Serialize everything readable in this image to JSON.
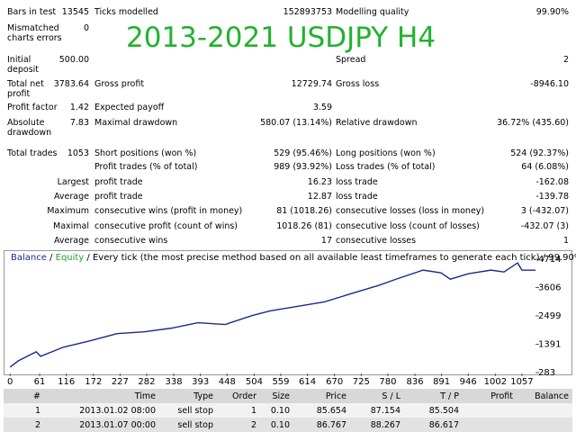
{
  "overlay_title": "2013-2021 USDJPY H4",
  "report": {
    "rows": [
      {
        "label1": "Bars in test",
        "value1": "13545",
        "label2": "Ticks modelled",
        "value2": "152893753",
        "label3": "Modelling quality",
        "value3": "99.90%"
      },
      {
        "label1": "Mismatched charts errors",
        "value1": "0"
      },
      {
        "label1": "Initial deposit",
        "value1": "500.00",
        "label3": "Spread",
        "value3": "2"
      },
      {
        "label1": "Total net profit",
        "value1": "3783.64",
        "label2": "Gross profit",
        "value2": "12729.74",
        "label3": "Gross loss",
        "value3": "-8946.10"
      },
      {
        "label1": "Profit factor",
        "value1": "1.42",
        "label2": "Expected payoff",
        "value2": "3.59"
      },
      {
        "label1": "Absolute drawdown",
        "value1": "7.83",
        "label2": "Maximal drawdown",
        "value2": "580.07 (13.14%)",
        "label3": "Relative drawdown",
        "value3": "36.72% (435.60)"
      },
      {
        "label1": "Total trades",
        "value1": "1053",
        "label2": "Short positions (won %)",
        "value2": "529 (95.46%)",
        "label3": "Long positions (won %)",
        "value3": "524 (92.37%)"
      },
      {
        "label2": "Profit trades (% of total)",
        "value2": "989 (93.92%)",
        "label3": "Loss trades (% of total)",
        "value3": "64 (6.08%)"
      },
      {
        "qualifier": "Largest",
        "label2": "profit trade",
        "value2": "16.23",
        "label3": "loss trade",
        "value3": "-162.08"
      },
      {
        "qualifier": "Average",
        "label2": "profit trade",
        "value2": "12.87",
        "label3": "loss trade",
        "value3": "-139.78"
      },
      {
        "qualifier": "Maximum",
        "label2": "consecutive wins (profit in money)",
        "value2": "81 (1018.26)",
        "label3": "consecutive losses (loss in money)",
        "value3": "3 (-432.07)"
      },
      {
        "qualifier": "Maximal",
        "label2": "consecutive profit (count of wins)",
        "value2": "1018.26 (81)",
        "label3": "consecutive loss (count of losses)",
        "value3": "-432.07 (3)"
      },
      {
        "qualifier": "Average",
        "label2": "consecutive wins",
        "value2": "17",
        "label3": "consecutive losses",
        "value3": "1"
      }
    ]
  },
  "chart_data": {
    "type": "line",
    "legend_separator": " / ",
    "description": "Every tick (the most precise method based on all available least timeframes to generate each tick) / 99.90%",
    "x": [
      0,
      17,
      54,
      63,
      110,
      165,
      221,
      277,
      333,
      388,
      444,
      500,
      537,
      593,
      649,
      704,
      760,
      797,
      853,
      890,
      909,
      946,
      993,
      1020,
      1048,
      1057,
      1085
    ],
    "series": [
      {
        "name": "Balance",
        "color": "#1c2a8c",
        "values": [
          496,
          744,
          1098,
          921,
          1276,
          1524,
          1807,
          1878,
          2020,
          2233,
          2162,
          2516,
          2694,
          2871,
          3048,
          3367,
          3686,
          3934,
          4289,
          4182,
          3934,
          4147,
          4289,
          4218,
          4572,
          4289,
          4289
        ]
      },
      {
        "name": "Equity",
        "color": "#22a030"
      }
    ],
    "xlim": [
      -6,
      1085
    ],
    "ylim": [
      283,
      4892
    ],
    "xticks": [
      0,
      61,
      116,
      172,
      227,
      282,
      338,
      393,
      448,
      504,
      559,
      614,
      670,
      725,
      780,
      836,
      891,
      946,
      1002,
      1057
    ],
    "yticks": [
      283,
      1391,
      2499,
      3606,
      4714
    ]
  },
  "trades": {
    "headers": [
      "#",
      "Time",
      "Type",
      "Order",
      "Size",
      "Price",
      "S / L",
      "T / P",
      "Profit",
      "Balance"
    ],
    "rows": [
      [
        "1",
        "2013.01.02 08:00",
        "sell stop",
        "1",
        "0.10",
        "85.654",
        "87.154",
        "85.504",
        null,
        null
      ],
      [
        "2",
        "2013.01.07 00:00",
        "sell stop",
        "2",
        "0.10",
        "86.767",
        "88.267",
        "86.617",
        null,
        null
      ]
    ]
  }
}
